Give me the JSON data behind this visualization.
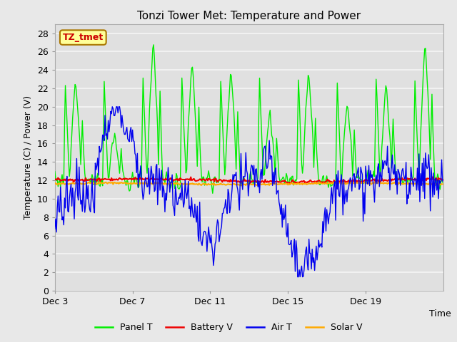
{
  "title": "Tonzi Tower Met: Temperature and Power",
  "xlabel": "Time",
  "ylabel": "Temperature (C) / Power (V)",
  "ylim": [
    0,
    29
  ],
  "yticks": [
    0,
    2,
    4,
    6,
    8,
    10,
    12,
    14,
    16,
    18,
    20,
    22,
    24,
    26,
    28
  ],
  "xtick_labels": [
    "Dec 3",
    "Dec 7",
    "Dec 11",
    "Dec 15",
    "Dec 19"
  ],
  "xtick_positions": [
    0,
    96,
    192,
    288,
    384
  ],
  "n_points": 480,
  "background_color": "#e8e8e8",
  "plot_bg_color": "#e0e0e0",
  "grid_color": "#f5f5f5",
  "panel_t_color": "#00ee00",
  "battery_v_color": "#ee0000",
  "air_t_color": "#0000ee",
  "solar_v_color": "#ffaa00",
  "legend_labels": [
    "Panel T",
    "Battery V",
    "Air T",
    "Solar V"
  ],
  "annotation_text": "TZ_tmet",
  "annotation_bg": "#ffff99",
  "annotation_border": "#aa7700",
  "annotation_text_color": "#cc0000"
}
